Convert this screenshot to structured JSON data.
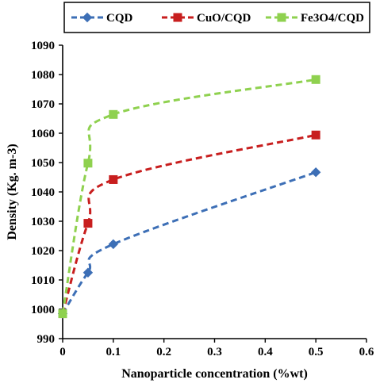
{
  "chart_data": {
    "type": "line",
    "title": "",
    "xlabel": "Nanoparticle concentration (%wt)",
    "ylabel": "Density (Kg. m-3)",
    "xlim": [
      0,
      0.6
    ],
    "ylim": [
      990,
      1090
    ],
    "xticks": [
      "0",
      "0.1",
      "0.2",
      "0.3",
      "0.4",
      "0.5",
      "0.6"
    ],
    "yticks": [
      "990",
      "1000",
      "1010",
      "1020",
      "1030",
      "1040",
      "1050",
      "1060",
      "1070",
      "1080",
      "1090"
    ],
    "x": [
      0,
      0.05,
      0.1,
      0.5
    ],
    "legend_position": "top",
    "grid": false,
    "curve": "smoothed",
    "series": [
      {
        "name": "CQD",
        "values": [
          998.5,
          1012.5,
          1022.2,
          1046.7
        ],
        "color": "#3d6fb6",
        "marker": "diamond"
      },
      {
        "name": "CuO/CQD",
        "values": [
          998.5,
          1029.3,
          1044.2,
          1059.4
        ],
        "color": "#c81e1e",
        "marker": "square"
      },
      {
        "name": "Fe3O4/CQD",
        "values": [
          998.5,
          1049.8,
          1066.4,
          1078.3
        ],
        "color": "#8fd14f",
        "marker": "square"
      }
    ]
  }
}
